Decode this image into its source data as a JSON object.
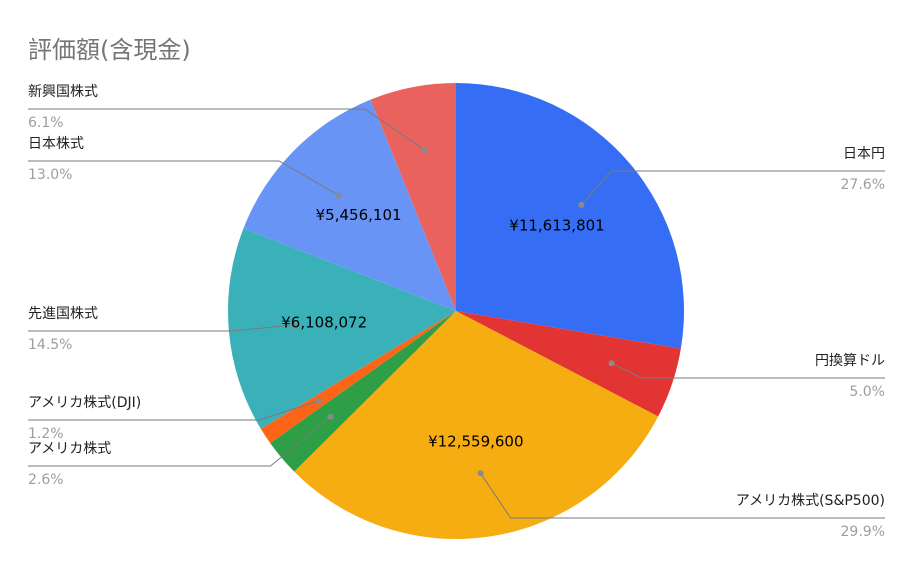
{
  "chart_data": {
    "type": "pie",
    "title": "評価額(含現金)",
    "slices": [
      {
        "name": "日本円",
        "percent_label": "27.6%",
        "value": 11613801,
        "value_label": "¥11,613,801",
        "color": "#356ef5"
      },
      {
        "name": "円換算ドル",
        "percent_label": "5.0%",
        "value": 2104000,
        "value_label": "",
        "color": "#e23433"
      },
      {
        "name": "アメリカ株式(S&P500)",
        "percent_label": "29.9%",
        "value": 12559600,
        "value_label": "¥12,559,600",
        "color": "#f6ad11"
      },
      {
        "name": "アメリカ株式",
        "percent_label": "2.6%",
        "value": 1094000,
        "value_label": "",
        "color": "#2e9f47"
      },
      {
        "name": "アメリカ株式(DJI)",
        "percent_label": "1.2%",
        "value": 505000,
        "value_label": "",
        "color": "#fc6518"
      },
      {
        "name": "先進国株式",
        "percent_label": "14.5%",
        "value": 6108072,
        "value_label": "¥6,108,072",
        "color": "#3ab1b9"
      },
      {
        "name": "日本株式",
        "percent_label": "13.0%",
        "value": 5456101,
        "value_label": "¥5,456,101",
        "color": "#6894f6"
      },
      {
        "name": "新興国株式",
        "percent_label": "6.1%",
        "value": 2567000,
        "value_label": "",
        "color": "#e9625d"
      }
    ]
  }
}
